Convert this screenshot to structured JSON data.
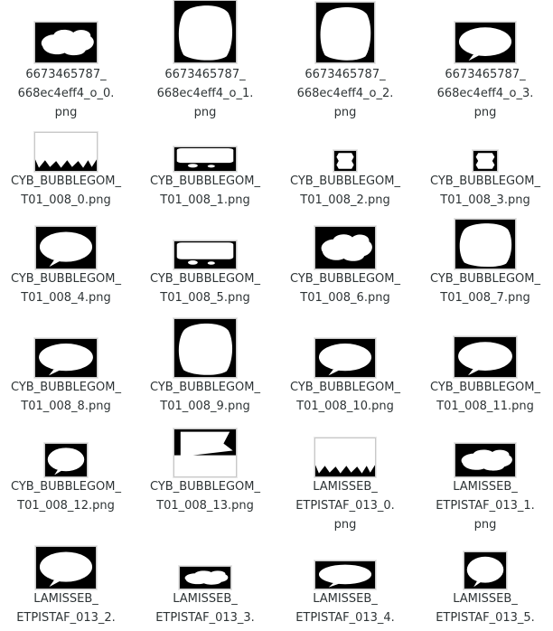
{
  "files": [
    {
      "label_lines": [
        "6673465787_",
        "668ec4eff4_o_0.",
        "png"
      ],
      "icon": "speech-bubble-thumbnail-icon"
    },
    {
      "label_lines": [
        "6673465787_",
        "668ec4eff4_o_1.",
        "png"
      ],
      "icon": "speech-bubble-thumbnail-icon"
    },
    {
      "label_lines": [
        "6673465787_",
        "668ec4eff4_o_2.",
        "png"
      ],
      "icon": "speech-bubble-thumbnail-icon"
    },
    {
      "label_lines": [
        "6673465787_",
        "668ec4eff4_o_3.",
        "png"
      ],
      "icon": "speech-bubble-thumbnail-icon"
    },
    {
      "label_lines": [
        "CYB_BUBBLEGOM_",
        "T01_008_0.png"
      ],
      "icon": "speech-bubble-thumbnail-icon"
    },
    {
      "label_lines": [
        "CYB_BUBBLEGOM_",
        "T01_008_1.png"
      ],
      "icon": "speech-bubble-thumbnail-icon"
    },
    {
      "label_lines": [
        "CYB_BUBBLEGOM_",
        "T01_008_2.png"
      ],
      "icon": "speech-bubble-thumbnail-icon"
    },
    {
      "label_lines": [
        "CYB_BUBBLEGOM_",
        "T01_008_3.png"
      ],
      "icon": "speech-bubble-thumbnail-icon"
    },
    {
      "label_lines": [
        "CYB_BUBBLEGOM_",
        "T01_008_4.png"
      ],
      "icon": "speech-bubble-thumbnail-icon"
    },
    {
      "label_lines": [
        "CYB_BUBBLEGOM_",
        "T01_008_5.png"
      ],
      "icon": "speech-bubble-thumbnail-icon"
    },
    {
      "label_lines": [
        "CYB_BUBBLEGOM_",
        "T01_008_6.png"
      ],
      "icon": "speech-bubble-thumbnail-icon"
    },
    {
      "label_lines": [
        "CYB_BUBBLEGOM_",
        "T01_008_7.png"
      ],
      "icon": "speech-bubble-thumbnail-icon"
    },
    {
      "label_lines": [
        "CYB_BUBBLEGOM_",
        "T01_008_8.png"
      ],
      "icon": "speech-bubble-thumbnail-icon"
    },
    {
      "label_lines": [
        "CYB_BUBBLEGOM_",
        "T01_008_9.png"
      ],
      "icon": "speech-bubble-thumbnail-icon"
    },
    {
      "label_lines": [
        "CYB_BUBBLEGOM_",
        "T01_008_10.png"
      ],
      "icon": "speech-bubble-thumbnail-icon"
    },
    {
      "label_lines": [
        "CYB_BUBBLEGOM_",
        "T01_008_11.png"
      ],
      "icon": "speech-bubble-thumbnail-icon"
    },
    {
      "label_lines": [
        "CYB_BUBBLEGOM_",
        "T01_008_12.png"
      ],
      "icon": "speech-bubble-thumbnail-icon"
    },
    {
      "label_lines": [
        "CYB_BUBBLEGOM_",
        "T01_008_13.png"
      ],
      "icon": "speech-bubble-thumbnail-icon"
    },
    {
      "label_lines": [
        "LAMISSEB_",
        "ETPISTAF_013_0.",
        "png"
      ],
      "icon": "speech-bubble-thumbnail-icon"
    },
    {
      "label_lines": [
        "LAMISSEB_",
        "ETPISTAF_013_1.",
        "png"
      ],
      "icon": "speech-bubble-thumbnail-icon"
    },
    {
      "label_lines": [
        "LAMISSEB_",
        "ETPISTAF_013_2."
      ],
      "icon": "speech-bubble-thumbnail-icon"
    },
    {
      "label_lines": [
        "LAMISSEB_",
        "ETPISTAF_013_3."
      ],
      "icon": "speech-bubble-thumbnail-icon"
    },
    {
      "label_lines": [
        "LAMISSEB_",
        "ETPISTAF_013_4."
      ],
      "icon": "speech-bubble-thumbnail-icon"
    },
    {
      "label_lines": [
        "LAMISSEB_",
        "ETPISTAF_013_5."
      ],
      "icon": "speech-bubble-thumbnail-icon"
    }
  ],
  "colors": {
    "text": "#2e3436",
    "background": "#ffffff",
    "thumb_bg": "#000000",
    "bubble": "#ffffff"
  }
}
